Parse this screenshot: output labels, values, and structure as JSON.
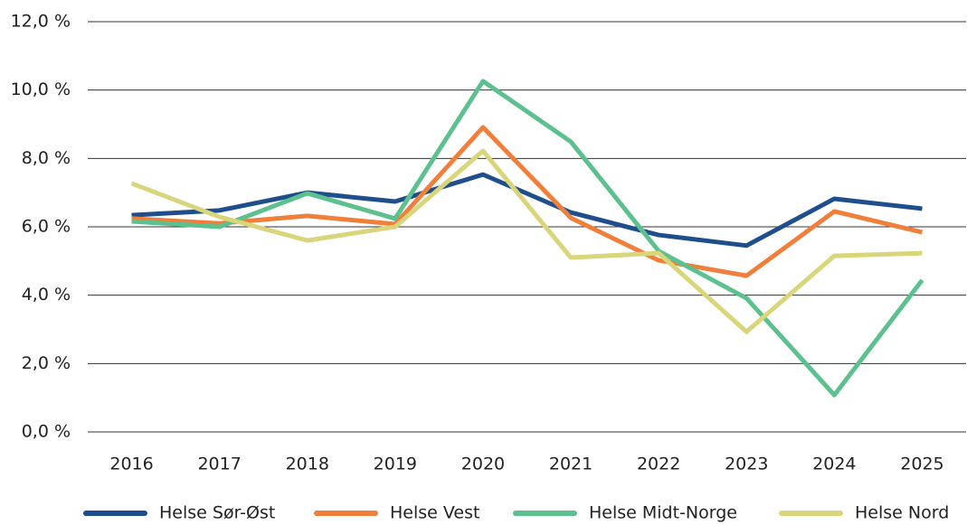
{
  "chart_data": {
    "type": "line",
    "categories": [
      "2016",
      "2017",
      "2018",
      "2019",
      "2020",
      "2021",
      "2022",
      "2023",
      "2024",
      "2025"
    ],
    "series": [
      {
        "name": "Helse Sør-Øst",
        "color": "#1f4e8c",
        "values": [
          6.34,
          6.48,
          7.0,
          6.74,
          7.53,
          6.42,
          5.76,
          5.45,
          6.82,
          6.53
        ]
      },
      {
        "name": "Helse Vest",
        "color": "#f07f3c",
        "values": [
          6.24,
          6.1,
          6.32,
          6.08,
          8.91,
          6.26,
          5.02,
          4.57,
          6.45,
          5.84
        ]
      },
      {
        "name": "Helse Midt-Norge",
        "color": "#5cc08f",
        "values": [
          6.16,
          6.0,
          6.98,
          6.24,
          10.26,
          8.49,
          5.29,
          3.91,
          1.08,
          4.44
        ]
      },
      {
        "name": "Helse Nord",
        "color": "#d9d57a",
        "values": [
          7.27,
          6.29,
          5.6,
          6.0,
          8.22,
          5.1,
          5.23,
          2.93,
          5.15,
          5.23
        ]
      }
    ],
    "ylim": [
      0,
      12
    ],
    "yticks": [
      {
        "value": 0,
        "label": "0,0 %"
      },
      {
        "value": 2,
        "label": "2,0 %"
      },
      {
        "value": 4,
        "label": "4,0 %"
      },
      {
        "value": 6,
        "label": "6,0 %"
      },
      {
        "value": 8,
        "label": "8,0 %"
      },
      {
        "value": 10,
        "label": "10,0 %"
      },
      {
        "value": 12,
        "label": "12,0 %"
      }
    ],
    "grid": true,
    "legend": "bottom"
  }
}
